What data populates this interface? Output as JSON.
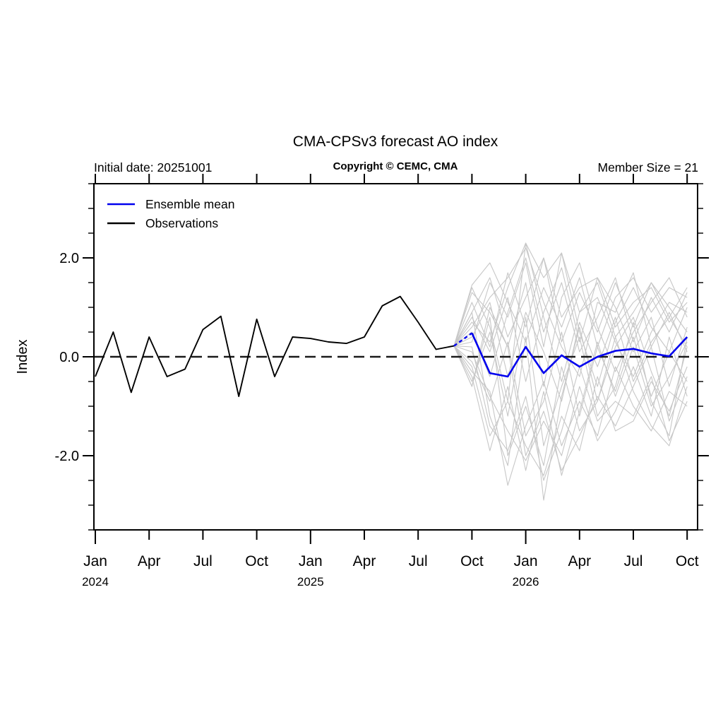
{
  "chart": {
    "title": "CMA-CPSv3 forecast AO index",
    "initial_date_label": "Initial date: 20251001",
    "copyright": "Copyright © CEMC, CMA",
    "member_size_label": "Member Size = 21",
    "y_axis_title": "Index",
    "legend": [
      {
        "label": "Ensemble mean",
        "color": "#0000ee"
      },
      {
        "label": "Observations",
        "color": "#000000"
      }
    ]
  },
  "chart_data": {
    "type": "line",
    "title": "CMA-CPSv3 forecast AO index",
    "xlabel": "",
    "ylabel": "Index",
    "ylim": [
      -3.5,
      3.5
    ],
    "y_major_ticks": [
      2.0,
      0.0,
      -2.0
    ],
    "y_major_tick_labels": [
      "2.0",
      "0.0",
      "-2.0"
    ],
    "y_minor_step": 0.5,
    "grid": false,
    "zero_reference_line": 0.0,
    "legend_position": "top-left-inside",
    "x_tick_months": [
      {
        "month_index": 0,
        "label": "Jan",
        "year": "2024"
      },
      {
        "month_index": 3,
        "label": "Apr"
      },
      {
        "month_index": 6,
        "label": "Jul"
      },
      {
        "month_index": 9,
        "label": "Oct"
      },
      {
        "month_index": 12,
        "label": "Jan",
        "year": "2025"
      },
      {
        "month_index": 15,
        "label": "Apr"
      },
      {
        "month_index": 18,
        "label": "Jul"
      },
      {
        "month_index": 21,
        "label": "Oct"
      },
      {
        "month_index": 24,
        "label": "Jan",
        "year": "2026"
      },
      {
        "month_index": 27,
        "label": "Apr"
      },
      {
        "month_index": 30,
        "label": "Jul"
      },
      {
        "month_index": 33,
        "label": "Oct"
      }
    ],
    "x_domain_month_range": [
      -0.1,
      33.6
    ],
    "observations": {
      "name": "Observations",
      "color": "#000000",
      "start_month_index": 0,
      "months": [
        "Jan 2024",
        "Feb 2024",
        "Mar 2024",
        "Apr 2024",
        "May 2024",
        "Jun 2024",
        "Jul 2024",
        "Aug 2024",
        "Sep 2024",
        "Oct 2024",
        "Nov 2024",
        "Dec 2024",
        "Jan 2025",
        "Feb 2025",
        "Mar 2025",
        "Apr 2025",
        "May 2025",
        "Jun 2025",
        "Jul 2025",
        "Aug 2025",
        "Sep 2025"
      ],
      "values": [
        -0.4,
        0.5,
        -0.72,
        0.4,
        -0.4,
        -0.25,
        0.55,
        0.82,
        -0.8,
        0.76,
        -0.4,
        0.4,
        0.37,
        0.3,
        0.27,
        0.4,
        1.03,
        1.22,
        0.7,
        0.15,
        0.22
      ]
    },
    "ensemble_mean": {
      "name": "Ensemble mean",
      "color": "#0000ee",
      "start_month_index": 20,
      "first_segment_dashed": true,
      "months": [
        "Sep 2025",
        "Oct 2025",
        "Nov 2025",
        "Dec 2025",
        "Jan 2026",
        "Feb 2026",
        "Mar 2026",
        "Apr 2026",
        "May 2026",
        "Jun 2026",
        "Jul 2026",
        "Aug 2026",
        "Sep 2026",
        "Oct 2026"
      ],
      "values": [
        0.22,
        0.48,
        -0.33,
        -0.4,
        0.2,
        -0.33,
        0.03,
        -0.2,
        0.0,
        0.12,
        0.16,
        0.07,
        0.01,
        0.4
      ]
    },
    "members_note": "21 ensemble member traces (gray), values estimated from plot",
    "member_color": "#c7c7c7",
    "members": [
      [
        0.22,
        1.4,
        0.6,
        -0.9,
        2.3,
        0.8,
        -0.5,
        0.9,
        1.2,
        0.3,
        -0.4,
        0.5,
        1.1,
        0.9
      ],
      [
        0.22,
        0.9,
        -1.2,
        -2.2,
        0.4,
        -2.9,
        -0.8,
        0.6,
        -0.9,
        0.2,
        0.8,
        -0.3,
        -1.2,
        0.2
      ],
      [
        0.22,
        0.3,
        1.5,
        0.8,
        1.9,
        0.2,
        2.1,
        0.5,
        -0.6,
        0.7,
        1.4,
        0.6,
        0.1,
        1.0
      ],
      [
        0.22,
        -0.4,
        -1.9,
        -0.6,
        -2.3,
        -0.7,
        -2.4,
        -1.1,
        0.3,
        -0.8,
        0.2,
        -1.0,
        -0.4,
        0.3
      ],
      [
        0.22,
        1.1,
        0.2,
        1.7,
        0.6,
        2.0,
        0.3,
        1.3,
        0.5,
        1.5,
        0.6,
        1.5,
        0.8,
        1.4
      ],
      [
        0.22,
        -0.6,
        0.8,
        -2.0,
        -1.0,
        -2.2,
        -0.2,
        -1.5,
        -0.9,
        0.4,
        -0.7,
        -1.4,
        -1.8,
        -0.6
      ],
      [
        0.22,
        0.6,
        1.2,
        1.6,
        2.2,
        1.1,
        0.2,
        -0.4,
        1.1,
        0.9,
        1.7,
        0.2,
        0.9,
        0.1
      ],
      [
        0.22,
        0.1,
        -0.8,
        -1.5,
        -2.1,
        -1.3,
        -2.0,
        -0.6,
        -1.7,
        -1.1,
        -0.2,
        -1.2,
        0.4,
        -0.8
      ],
      [
        0.22,
        1.3,
        0.9,
        0.2,
        1.5,
        -0.6,
        1.2,
        1.9,
        0.6,
        -0.3,
        0.5,
        1.1,
        1.6,
        0.8
      ],
      [
        0.22,
        -0.2,
        -1.6,
        -0.9,
        -1.8,
        -2.4,
        -1.2,
        -1.9,
        -0.4,
        -1.5,
        -1.3,
        -0.5,
        -1.1,
        -0.2
      ],
      [
        0.22,
        0.8,
        0.1,
        1.2,
        -0.5,
        0.9,
        1.8,
        0.3,
        1.6,
        1.0,
        0.1,
        0.8,
        -0.6,
        0.6
      ],
      [
        0.22,
        -0.5,
        0.5,
        -1.2,
        0.8,
        -1.8,
        -0.6,
        0.4,
        -1.2,
        -0.6,
        0.7,
        -0.9,
        -1.6,
        0.4
      ],
      [
        0.22,
        1.45,
        1.9,
        1.1,
        0.3,
        1.4,
        0.6,
        1.6,
        0.2,
        1.2,
        1.6,
        0.9,
        1.4,
        1.2
      ],
      [
        0.22,
        -0.3,
        -0.7,
        -2.6,
        -1.4,
        -0.5,
        -1.8,
        -0.9,
        -1.6,
        -0.2,
        -1.0,
        -1.5,
        -0.7,
        -1.0
      ],
      [
        0.22,
        0.5,
        -0.4,
        0.9,
        2.0,
        0.5,
        1.5,
        0.1,
        0.8,
        1.6,
        0.3,
        1.2,
        0.5,
        1.3
      ],
      [
        0.22,
        -0.6,
        1.0,
        0.2,
        -2.0,
        -1.1,
        -2.3,
        -1.6,
        -0.8,
        -1.4,
        -0.6,
        0.2,
        -1.3,
        -0.4
      ],
      [
        0.22,
        0.9,
        1.6,
        0.4,
        1.2,
        2.0,
        0.8,
        1.4,
        1.6,
        0.6,
        1.1,
        1.4,
        0.7,
        1.1
      ],
      [
        0.22,
        0.2,
        -1.4,
        -1.9,
        -0.8,
        -2.5,
        -1.5,
        -0.2,
        -1.3,
        -0.9,
        -1.2,
        -0.4,
        -1.7,
        -0.9
      ],
      [
        0.22,
        0.7,
        0.3,
        1.4,
        2.3,
        1.6,
        2.1,
        0.9,
        1.5,
        0.4,
        0.9,
        1.5,
        1.0,
        0.5
      ],
      [
        0.22,
        -0.1,
        -0.9,
        0.3,
        -1.6,
        -0.9,
        0.5,
        -1.2,
        0.2,
        -0.7,
        0.4,
        -0.8,
        0.1,
        -0.5
      ],
      [
        0.22,
        0.4,
        1.1,
        -0.4,
        0.9,
        0.1,
        -0.9,
        0.7,
        -0.2,
        0.8,
        -0.5,
        0.3,
        0.8,
        0.2
      ]
    ]
  }
}
